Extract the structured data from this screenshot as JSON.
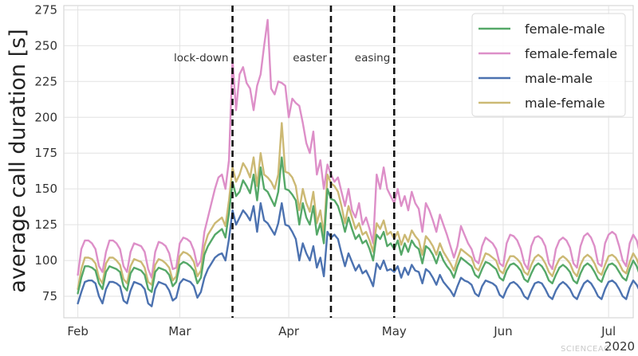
{
  "chart_data": {
    "type": "line",
    "title": "",
    "xlabel": "",
    "ylabel": "average call duration [s]",
    "ylim": [
      60,
      278
    ],
    "yticks": [
      75,
      100,
      125,
      150,
      175,
      200,
      225,
      250,
      275
    ],
    "xlim": [
      "2020-01-28",
      "2020-07-08"
    ],
    "xticks": [
      {
        "date": "2020-02-01",
        "label": "Feb"
      },
      {
        "date": "2020-03-01",
        "label": "Mar"
      },
      {
        "date": "2020-04-01",
        "label": "Apr"
      },
      {
        "date": "2020-05-01",
        "label": "May"
      },
      {
        "date": "2020-06-01",
        "label": "Jun"
      },
      {
        "date": "2020-07-01",
        "label": "Jul"
      }
    ],
    "x_year_label": "2020",
    "grid": true,
    "legend_position": "top-right",
    "x_start_date": "2020-02-01",
    "vlines": [
      {
        "date": "2020-03-16",
        "label": "lock-down"
      },
      {
        "date": "2020-04-13",
        "label": "easter"
      },
      {
        "date": "2020-05-01",
        "label": "easing"
      }
    ],
    "series": [
      {
        "name": "female-male",
        "color": "#55a868",
        "values": [
          77,
          88,
          96,
          96,
          95,
          93,
          84,
          80,
          92,
          96,
          95,
          94,
          92,
          82,
          79,
          91,
          95,
          94,
          93,
          90,
          80,
          78,
          92,
          95,
          94,
          93,
          90,
          82,
          85,
          97,
          99,
          98,
          96,
          93,
          84,
          88,
          104,
          110,
          114,
          118,
          120,
          122,
          116,
          133,
          155,
          145,
          148,
          156,
          152,
          147,
          160,
          142,
          165,
          150,
          148,
          143,
          138,
          148,
          172,
          150,
          149,
          146,
          142,
          125,
          140,
          130,
          125,
          138,
          118,
          126,
          112,
          150,
          143,
          142,
          138,
          130,
          120,
          130,
          122,
          115,
          118,
          112,
          114,
          108,
          100,
          118,
          115,
          120,
          110,
          112,
          108,
          114,
          104,
          112,
          106,
          114,
          110,
          108,
          98,
          110,
          108,
          104,
          98,
          106,
          100,
          96,
          93,
          88,
          96,
          102,
          100,
          98,
          96,
          90,
          88,
          94,
          99,
          98,
          96,
          94,
          88,
          86,
          93,
          97,
          98,
          96,
          93,
          87,
          85,
          91,
          96,
          98,
          96,
          92,
          86,
          84,
          90,
          95,
          97,
          95,
          92,
          86,
          84,
          91,
          96,
          98,
          96,
          92,
          87,
          85,
          92,
          97,
          98,
          96,
          92,
          88,
          86,
          94,
          100,
          96,
          89,
          82,
          100
        ]
      },
      {
        "name": "female-female",
        "color": "#dd8fc8",
        "values": [
          90,
          108,
          114,
          114,
          112,
          108,
          96,
          92,
          106,
          114,
          114,
          112,
          108,
          96,
          92,
          106,
          112,
          111,
          110,
          106,
          94,
          88,
          106,
          113,
          112,
          110,
          105,
          94,
          95,
          112,
          116,
          115,
          113,
          107,
          96,
          100,
          120,
          130,
          140,
          150,
          158,
          160,
          150,
          170,
          240,
          205,
          230,
          235,
          224,
          220,
          205,
          222,
          230,
          250,
          268,
          220,
          216,
          225,
          224,
          222,
          200,
          213,
          210,
          208,
          196,
          182,
          175,
          190,
          160,
          170,
          150,
          167,
          160,
          155,
          158,
          148,
          138,
          150,
          135,
          130,
          140,
          125,
          130,
          122,
          112,
          160,
          150,
          165,
          150,
          145,
          140,
          150,
          138,
          145,
          135,
          148,
          140,
          136,
          120,
          140,
          135,
          128,
          120,
          132,
          125,
          118,
          110,
          102,
          110,
          124,
          118,
          112,
          108,
          100,
          98,
          110,
          116,
          114,
          112,
          108,
          98,
          96,
          112,
          118,
          117,
          114,
          108,
          98,
          94,
          110,
          116,
          117,
          115,
          110,
          98,
          94,
          108,
          114,
          116,
          114,
          109,
          98,
          95,
          110,
          117,
          119,
          116,
          110,
          98,
          96,
          112,
          118,
          120,
          118,
          110,
          100,
          96,
          112,
          118,
          114,
          104,
          94,
          116
        ]
      },
      {
        "name": "male-male",
        "color": "#4c72b0",
        "values": [
          70,
          78,
          85,
          86,
          86,
          84,
          75,
          70,
          80,
          85,
          85,
          84,
          82,
          72,
          70,
          79,
          85,
          84,
          83,
          80,
          70,
          68,
          80,
          85,
          84,
          83,
          79,
          72,
          74,
          84,
          87,
          86,
          85,
          82,
          74,
          78,
          88,
          94,
          98,
          102,
          104,
          105,
          100,
          115,
          135,
          125,
          130,
          135,
          132,
          128,
          138,
          120,
          140,
          128,
          126,
          122,
          118,
          126,
          140,
          125,
          124,
          120,
          115,
          100,
          112,
          105,
          100,
          110,
          95,
          102,
          89,
          120,
          116,
          118,
          115,
          105,
          96,
          105,
          99,
          93,
          97,
          91,
          93,
          88,
          82,
          98,
          94,
          100,
          93,
          94,
          92,
          96,
          88,
          95,
          90,
          97,
          93,
          92,
          84,
          94,
          92,
          88,
          83,
          90,
          85,
          82,
          79,
          75,
          82,
          88,
          86,
          85,
          83,
          77,
          75,
          82,
          86,
          85,
          84,
          82,
          76,
          74,
          80,
          84,
          85,
          83,
          80,
          75,
          73,
          79,
          84,
          85,
          84,
          80,
          75,
          73,
          79,
          83,
          85,
          83,
          80,
          75,
          73,
          79,
          84,
          86,
          84,
          80,
          75,
          73,
          80,
          85,
          86,
          84,
          80,
          75,
          73,
          81,
          86,
          83,
          78,
          72,
          87
        ]
      },
      {
        "name": "male-female",
        "color": "#ccb974",
        "values": [
          80,
          94,
          102,
          102,
          101,
          98,
          88,
          84,
          98,
          102,
          102,
          100,
          97,
          87,
          84,
          96,
          101,
          100,
          99,
          95,
          85,
          83,
          97,
          101,
          100,
          98,
          95,
          86,
          89,
          103,
          106,
          105,
          103,
          99,
          89,
          93,
          110,
          118,
          122,
          126,
          128,
          130,
          124,
          142,
          165,
          155,
          160,
          168,
          164,
          158,
          172,
          152,
          175,
          160,
          158,
          155,
          150,
          160,
          196,
          162,
          161,
          158,
          152,
          135,
          150,
          140,
          134,
          148,
          126,
          135,
          118,
          160,
          154,
          152,
          148,
          138,
          126,
          138,
          130,
          122,
          126,
          118,
          120,
          114,
          106,
          126,
          122,
          128,
          118,
          120,
          115,
          120,
          111,
          118,
          113,
          121,
          117,
          114,
          104,
          117,
          114,
          110,
          104,
          112,
          106,
          102,
          98,
          93,
          101,
          108,
          106,
          104,
          102,
          95,
          93,
          99,
          105,
          104,
          102,
          100,
          93,
          91,
          98,
          103,
          103,
          101,
          98,
          92,
          90,
          97,
          102,
          104,
          102,
          98,
          92,
          89,
          96,
          101,
          103,
          101,
          98,
          92,
          89,
          97,
          102,
          104,
          102,
          98,
          92,
          90,
          97,
          103,
          104,
          102,
          98,
          93,
          91,
          99,
          105,
          101,
          94,
          87,
          102
        ]
      }
    ]
  },
  "watermark": "SCIENCEAG"
}
